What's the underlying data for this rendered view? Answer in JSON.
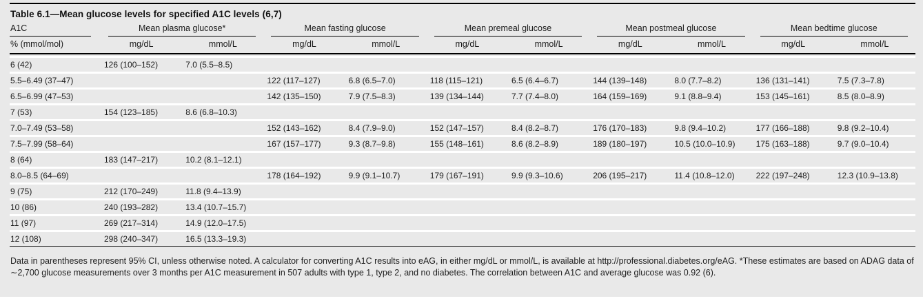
{
  "table": {
    "title": "Table 6.1—Mean glucose levels for specified A1C levels (6,7)",
    "corner_header": {
      "label": "A1C",
      "unit": "% (mmol/mol)"
    },
    "groups": [
      {
        "label": "Mean plasma glucose*",
        "units": [
          "mg/dL",
          "mmol/L"
        ]
      },
      {
        "label": "Mean fasting glucose",
        "units": [
          "mg/dL",
          "mmol/L"
        ]
      },
      {
        "label": "Mean premeal glucose",
        "units": [
          "mg/dL",
          "mmol/L"
        ]
      },
      {
        "label": "Mean postmeal glucose",
        "units": [
          "mg/dL",
          "mmol/L"
        ]
      },
      {
        "label": "Mean bedtime glucose",
        "units": [
          "mg/dL",
          "mmol/L"
        ]
      }
    ],
    "rows": [
      [
        "6 (42)",
        "126 (100–152)",
        "7.0 (5.5–8.5)",
        "",
        "",
        "",
        "",
        "",
        "",
        "",
        ""
      ],
      [
        "5.5–6.49 (37–47)",
        "",
        "",
        "122 (117–127)",
        "6.8 (6.5–7.0)",
        "118 (115–121)",
        "6.5 (6.4–6.7)",
        "144 (139–148)",
        "8.0 (7.7–8.2)",
        "136 (131–141)",
        "7.5 (7.3–7.8)"
      ],
      [
        "6.5–6.99 (47–53)",
        "",
        "",
        "142 (135–150)",
        "7.9 (7.5–8.3)",
        "139 (134–144)",
        "7.7 (7.4–8.0)",
        "164 (159–169)",
        "9.1 (8.8–9.4)",
        "153 (145–161)",
        "8.5 (8.0–8.9)"
      ],
      [
        "7 (53)",
        "154 (123–185)",
        "8.6 (6.8–10.3)",
        "",
        "",
        "",
        "",
        "",
        "",
        "",
        ""
      ],
      [
        "7.0–7.49 (53–58)",
        "",
        "",
        "152 (143–162)",
        "8.4 (7.9–9.0)",
        "152 (147–157)",
        "8.4 (8.2–8.7)",
        "176 (170–183)",
        "9.8 (9.4–10.2)",
        "177 (166–188)",
        "9.8 (9.2–10.4)"
      ],
      [
        "7.5–7.99 (58–64)",
        "",
        "",
        "167 (157–177)",
        "9.3 (8.7–9.8)",
        "155 (148–161)",
        "8.6 (8.2–8.9)",
        "189 (180–197)",
        "10.5 (10.0–10.9)",
        "175 (163–188)",
        "9.7 (9.0–10.4)"
      ],
      [
        "8 (64)",
        "183 (147–217)",
        "10.2 (8.1–12.1)",
        "",
        "",
        "",
        "",
        "",
        "",
        "",
        ""
      ],
      [
        "8.0–8.5 (64–69)",
        "",
        "",
        "178 (164–192)",
        "9.9 (9.1–10.7)",
        "179 (167–191)",
        "9.9 (9.3–10.6)",
        "206 (195–217)",
        "11.4 (10.8–12.0)",
        "222 (197–248)",
        "12.3 (10.9–13.8)"
      ],
      [
        "9 (75)",
        "212 (170–249)",
        "11.8 (9.4–13.9)",
        "",
        "",
        "",
        "",
        "",
        "",
        "",
        ""
      ],
      [
        "10 (86)",
        "240 (193–282)",
        "13.4 (10.7–15.7)",
        "",
        "",
        "",
        "",
        "",
        "",
        "",
        ""
      ],
      [
        "11 (97)",
        "269 (217–314)",
        "14.9 (12.0–17.5)",
        "",
        "",
        "",
        "",
        "",
        "",
        "",
        ""
      ],
      [
        "12 (108)",
        "298 (240–347)",
        "16.5 (13.3–19.3)",
        "",
        "",
        "",
        "",
        "",
        "",
        "",
        ""
      ]
    ],
    "footnote": "Data in parentheses represent 95% CI, unless otherwise noted. A calculator for converting A1C results into eAG, in either mg/dL or mmol/L, is available at http://professional.diabetes.org/eAG. *These estimates are based on ADAG data of ∼2,700 glucose measurements over 3 months per A1C measurement in 507 adults with type 1, type 2, and no diabetes. The correlation between A1C and average glucose was 0.92 (6)."
  },
  "colors": {
    "panel_bg": "#e9e9e9",
    "row_bg": "#e9e9e9",
    "separator": "#ffffff",
    "line": "#000000",
    "text": "#1c1c1c"
  }
}
